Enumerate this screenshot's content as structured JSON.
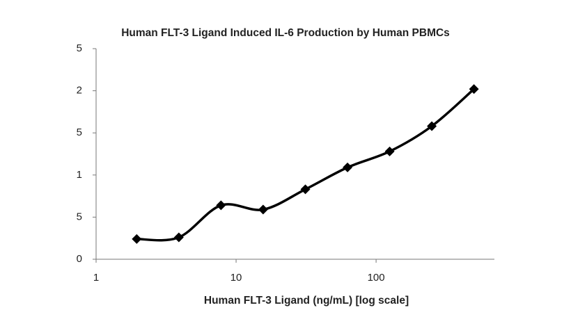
{
  "chart_data": {
    "type": "line",
    "title": "Human FLT-3 Ligand Induced IL-6 Production by Human PBMCs",
    "x_label": "Human FLT-3 Ligand (ng/mL) [log scale]",
    "x": [
      1.95,
      3.9,
      7.8,
      15.6,
      31.25,
      62.5,
      125,
      250,
      500
    ],
    "series": [
      {
        "color": "#000000",
        "values": [
          0.24,
          0.26,
          0.64,
          0.59,
          0.83,
          1.09,
          1.28,
          1.58,
          2.02
        ]
      }
    ],
    "xlim": [
      1,
      700
    ],
    "xticks": [
      1,
      10,
      100
    ],
    "xlog": true,
    "ylim": [
      0,
      2.5
    ],
    "yticks": [
      0,
      {
        "value": 0.5,
        "label": "5"
      },
      1,
      {
        "value": 1.5,
        "label": "5"
      },
      2,
      {
        "value": 2.5,
        "label": "5"
      }
    ],
    "grid": false
  }
}
